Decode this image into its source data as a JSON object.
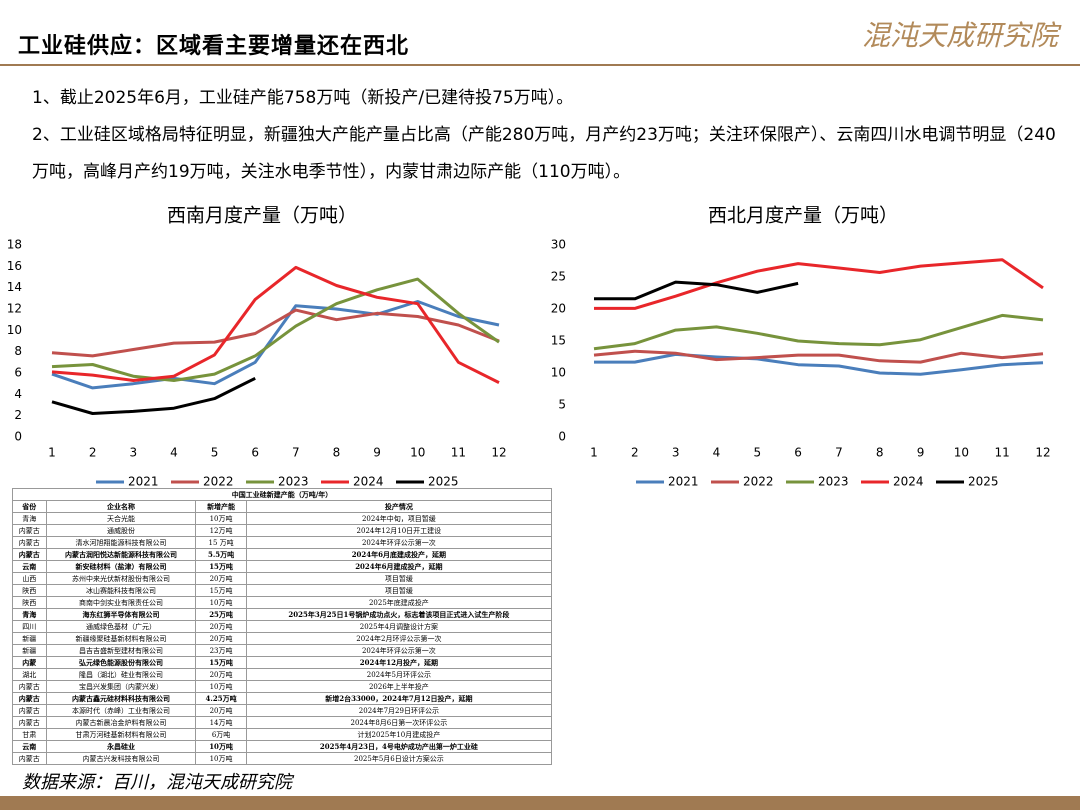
{
  "header": {
    "title": "工业硅供应：区域看主要增量还在西北",
    "logo": "混沌天成研究院"
  },
  "bullets": [
    "1、截止2025年6月，工业硅产能758万吨（新投产/已建待投75万吨）。",
    "2、工业硅区域格局特征明显，新疆独大产能产量占比高（产能280万吨，月产约23万吨；关注环保限产）、云南四川水电调节明显（240万吨，高峰月产约19万吨，关注水电季节性），内蒙甘肃边际产能（110万吨）。"
  ],
  "chart_data": [
    {
      "type": "line",
      "title": "西南月度产量（万吨）",
      "categories": [
        "1",
        "2",
        "3",
        "4",
        "5",
        "6",
        "7",
        "8",
        "9",
        "10",
        "11",
        "12"
      ],
      "ylim": [
        0,
        18
      ],
      "yticks": [
        0,
        2,
        4,
        6,
        8,
        10,
        12,
        14,
        16,
        18
      ],
      "grid": false,
      "series": [
        {
          "name": "2021",
          "color": "#4a7ebb",
          "values": [
            5.9,
            4.6,
            5.0,
            5.5,
            5.0,
            7.0,
            12.3,
            12.0,
            11.5,
            12.7,
            11.3,
            10.5
          ]
        },
        {
          "name": "2022",
          "color": "#c0504d",
          "values": [
            7.9,
            7.6,
            8.2,
            8.8,
            8.9,
            9.7,
            11.9,
            11.0,
            11.6,
            11.3,
            10.5,
            9.0
          ]
        },
        {
          "name": "2023",
          "color": "#77933c",
          "values": [
            6.6,
            6.8,
            5.7,
            5.3,
            5.9,
            7.6,
            10.4,
            12.5,
            13.8,
            14.8,
            11.6,
            8.9
          ]
        },
        {
          "name": "2024",
          "color": "#e8262a",
          "values": [
            6.1,
            5.8,
            5.3,
            5.7,
            7.7,
            12.9,
            15.9,
            14.2,
            13.1,
            12.5,
            7.0,
            5.1
          ]
        },
        {
          "name": "2025",
          "color": "#000000",
          "values": [
            3.3,
            2.2,
            2.4,
            2.7,
            3.6,
            5.5,
            null,
            null,
            null,
            null,
            null,
            null
          ]
        }
      ]
    },
    {
      "type": "line",
      "title": "西北月度产量（万吨）",
      "categories": [
        "1",
        "2",
        "3",
        "4",
        "5",
        "6",
        "7",
        "8",
        "9",
        "10",
        "11",
        "12"
      ],
      "ylim": [
        0,
        30
      ],
      "yticks": [
        0,
        5,
        10,
        15,
        20,
        25,
        30
      ],
      "grid": false,
      "series": [
        {
          "name": "2021",
          "color": "#4a7ebb",
          "values": [
            11.7,
            11.7,
            12.9,
            12.5,
            12.2,
            11.3,
            11.1,
            10.0,
            9.8,
            10.5,
            11.3,
            11.6
          ]
        },
        {
          "name": "2022",
          "color": "#c0504d",
          "values": [
            12.8,
            13.4,
            13.1,
            12.1,
            12.4,
            12.8,
            12.8,
            11.9,
            11.7,
            13.1,
            12.4,
            13.0
          ]
        },
        {
          "name": "2023",
          "color": "#77933c",
          "values": [
            13.8,
            14.6,
            16.7,
            17.2,
            16.2,
            15.0,
            14.6,
            14.4,
            15.2,
            17.1,
            19.0,
            18.3
          ]
        },
        {
          "name": "2024",
          "color": "#e8262a",
          "values": [
            20.1,
            20.1,
            22.0,
            24.1,
            25.9,
            27.1,
            26.4,
            25.7,
            26.7,
            27.2,
            27.7,
            23.3
          ]
        },
        {
          "name": "2025",
          "color": "#000000",
          "values": [
            21.6,
            21.6,
            24.2,
            23.8,
            22.6,
            24.0,
            null,
            null,
            null,
            null,
            null,
            null
          ]
        }
      ]
    }
  ],
  "table": {
    "title": "中国工业硅新建产能（万吨/年）",
    "columns": [
      "省份",
      "企业名称",
      "新增产能",
      "投产情况"
    ],
    "rows": [
      [
        "青海",
        "天合光能",
        "10万吨",
        "2024年中旬，项目暂缓"
      ],
      [
        "内蒙古",
        "通威股份",
        "12万吨",
        "2024年12月10日开工建设"
      ],
      [
        "内蒙古",
        "清水河旭翔能源科技有限公司",
        "15 万吨",
        "2024年环评公示第一次"
      ],
      [
        "内蒙古",
        "内蒙古润阳悦达新能源科技有限公司",
        "5.5万吨",
        "2024年6月底建成投产，延期"
      ],
      [
        "云南",
        "新安硅材料（盐津）有限公司",
        "15万吨",
        "2024年6月建成投产，延期"
      ],
      [
        "山西",
        "苏州中来光伏新材股份有限公司",
        "20万吨",
        "项目暂缓"
      ],
      [
        "陕西",
        "冰山赛能科技有限公司",
        "15万吨",
        "项目暂缓"
      ],
      [
        "陕西",
        "商南中剑实业有限责任公司",
        "10万吨",
        "2025年底建成投产"
      ],
      [
        "青海",
        "海东红狮半导体有限公司",
        "25万吨",
        "2025年3月25日1号锅炉成功点火，标志着该项目正式进入试生产阶段"
      ],
      [
        "四川",
        "通威绿色基材（广元）",
        "20万吨",
        "2025年4月调整设计方案"
      ],
      [
        "新疆",
        "新疆缘聚硅基新材料有限公司",
        "20万吨",
        "2024年2月环评公示第一次"
      ],
      [
        "新疆",
        "昌吉吉盛新型建材有限公司",
        "23万吨",
        "2024年环评公示第一次"
      ],
      [
        "内蒙",
        "弘元绿色能源股份有限公司",
        "15万吨",
        "2024年12月投产，延期"
      ],
      [
        "湖北",
        "隆昌（湖北）硅业有限公司",
        "20万吨",
        "2024年5月环评公示"
      ],
      [
        "内蒙古",
        "宝昌兴发集团（内蒙兴发）",
        "10万吨",
        "2026年上半年投产"
      ],
      [
        "内蒙古",
        "内蒙古鑫元硅材料科技有限公司",
        "4.25万吨",
        "新增2台33000，2024年7月12日投产，延期"
      ],
      [
        "内蒙古",
        "本源时代（赤峰）工业有限公司",
        "20万吨",
        "2024年7月29日环评公示"
      ],
      [
        "内蒙古",
        "内蒙古新晨冶金炉料有限公司",
        "14万吨",
        "2024年8月6日第一次环评公示"
      ],
      [
        "甘肃",
        "甘肃万河硅基新材料有限公司",
        "6万吨",
        "计划2025年10月建成投产"
      ],
      [
        "云南",
        "永昌硅业",
        "10万吨",
        "2025年4月23日，4号电炉成功产出第一炉工业硅"
      ],
      [
        "内蒙古",
        "内蒙古兴发科技有限公司",
        "10万吨",
        "2025年5月6日设计方案公示"
      ]
    ]
  },
  "source": "数据来源：百川，混沌天成研究院"
}
